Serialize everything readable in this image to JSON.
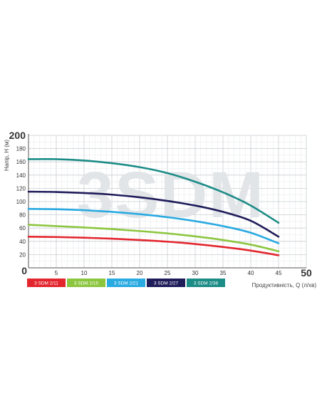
{
  "chart_data": {
    "type": "line",
    "watermark": "3SDM",
    "xlabel": "Продуктивність, Q (л/хв)",
    "ylabel": "Напір, H (м)",
    "xlim": [
      0,
      50
    ],
    "ylim": [
      0,
      200
    ],
    "x_ticks": [
      0,
      5,
      10,
      15,
      20,
      25,
      30,
      35,
      40,
      45,
      50
    ],
    "y_ticks": [
      0,
      20,
      40,
      60,
      80,
      100,
      120,
      140,
      160,
      180,
      200
    ],
    "grid": true,
    "legend_position": "bottom-left",
    "series": [
      {
        "name": "3 SDM 2/11",
        "color": "#e3262e",
        "x": [
          0,
          5,
          10,
          15,
          20,
          25,
          30,
          35,
          40,
          45
        ],
        "y": [
          47,
          46.5,
          45.5,
          44,
          42,
          39.5,
          36,
          31.5,
          26,
          19
        ]
      },
      {
        "name": "3 SDM 2/15",
        "color": "#8cc63f",
        "x": [
          0,
          5,
          10,
          15,
          20,
          25,
          30,
          35,
          40,
          45
        ],
        "y": [
          65,
          63,
          61,
          58.5,
          55.5,
          52,
          47.5,
          42,
          35,
          25
        ]
      },
      {
        "name": "3 SDM 2/21",
        "color": "#29aae1",
        "x": [
          0,
          5,
          10,
          15,
          20,
          25,
          30,
          35,
          40,
          45
        ],
        "y": [
          89,
          88.5,
          87,
          84.5,
          81,
          76.5,
          70.5,
          63,
          53,
          37
        ]
      },
      {
        "name": "3 SDM 2/27",
        "color": "#1f1c5a",
        "x": [
          0,
          5,
          10,
          15,
          20,
          25,
          30,
          35,
          40,
          45
        ],
        "y": [
          115,
          114.5,
          113,
          110.5,
          106.5,
          101,
          94,
          84.5,
          71,
          47
        ]
      },
      {
        "name": "3 SDM 2/38",
        "color": "#1c8c87",
        "x": [
          0,
          5,
          10,
          15,
          20,
          25,
          30,
          35,
          40,
          45
        ],
        "y": [
          164,
          164,
          162,
          158,
          152,
          143,
          130,
          114,
          94,
          68
        ]
      }
    ]
  }
}
